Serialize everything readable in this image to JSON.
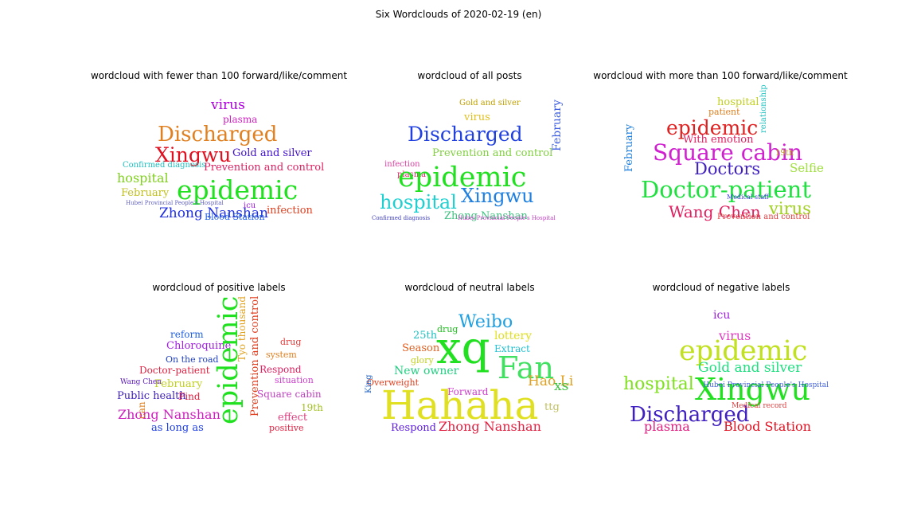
{
  "figure": {
    "title": "Six Wordclouds of 2020-02-19 (en)"
  },
  "panels": [
    {
      "title": "wordcloud with fewer than 100 forward/like/comment",
      "words": [
        {
          "text": "virus",
          "color": "#b000e0"
        },
        {
          "text": "plasma",
          "color": "#d020c0"
        },
        {
          "text": "Discharged",
          "color": "#e08020"
        },
        {
          "text": "Xingwu",
          "color": "#e01020"
        },
        {
          "text": "Gold and silver",
          "color": "#4010d0"
        },
        {
          "text": "Prevention and control",
          "color": "#e02060"
        },
        {
          "text": "Confirmed diagnosis",
          "color": "#20c0c0"
        },
        {
          "text": "hospital",
          "color": "#80d020"
        },
        {
          "text": "epidemic",
          "color": "#20e020"
        },
        {
          "text": "February",
          "color": "#c0c020"
        },
        {
          "text": "Zhong Nanshan",
          "color": "#2030e0"
        },
        {
          "text": "infection",
          "color": "#e04020"
        },
        {
          "text": "Blood Station",
          "color": "#2060e0"
        },
        {
          "text": "icu",
          "color": "#a020e0"
        },
        {
          "text": "Hubei Provincial People's Hospital",
          "color": "#6060c0"
        }
      ]
    },
    {
      "title": "wordcloud of all posts",
      "words": [
        {
          "text": "Gold and silver",
          "color": "#c0a000"
        },
        {
          "text": "virus",
          "color": "#e0c020"
        },
        {
          "text": "Discharged",
          "color": "#2040e0"
        },
        {
          "text": "Prevention and control",
          "color": "#80d040"
        },
        {
          "text": "infection",
          "color": "#e040a0"
        },
        {
          "text": "plasma",
          "color": "#e02060"
        },
        {
          "text": "epidemic",
          "color": "#20e020"
        },
        {
          "text": "February",
          "color": "#4060e0"
        },
        {
          "text": "hospital",
          "color": "#20d0d0"
        },
        {
          "text": "Xingwu",
          "color": "#2080e0"
        },
        {
          "text": "Zhong Nanshan",
          "color": "#40c080"
        },
        {
          "text": "Confirmed diagnosis",
          "color": "#4040c0"
        },
        {
          "text": "Hubei Provincial People's Hospital",
          "color": "#c040c0"
        }
      ]
    },
    {
      "title": "wordcloud with more than 100 forward/like/comment",
      "words": [
        {
          "text": "hospital",
          "color": "#c0d020"
        },
        {
          "text": "patient",
          "color": "#e08020"
        },
        {
          "text": "epidemic",
          "color": "#e02020"
        },
        {
          "text": "With emotion",
          "color": "#e02060"
        },
        {
          "text": "Square cabin",
          "color": "#d020d0"
        },
        {
          "text": "Doctors",
          "color": "#4020c0"
        },
        {
          "text": "Doctor-patient",
          "color": "#20e040"
        },
        {
          "text": "Wang Chen",
          "color": "#e02060"
        },
        {
          "text": "virus",
          "color": "#a0d020"
        },
        {
          "text": "Prevention and control",
          "color": "#e04040"
        },
        {
          "text": "February",
          "color": "#2080e0"
        },
        {
          "text": "Selfie",
          "color": "#a0e040"
        },
        {
          "text": "relationship",
          "color": "#20c0c0"
        },
        {
          "text": "19th",
          "color": "#c0a020"
        },
        {
          "text": "Medical staff",
          "color": "#4040e0"
        }
      ]
    },
    {
      "title": "wordcloud of positive labels",
      "words": [
        {
          "text": "reform",
          "color": "#2060e0"
        },
        {
          "text": "Chloroquine",
          "color": "#a020e0"
        },
        {
          "text": "On the road",
          "color": "#2040c0"
        },
        {
          "text": "Doctor-patient",
          "color": "#e02040"
        },
        {
          "text": "February",
          "color": "#c0d020"
        },
        {
          "text": "Public health",
          "color": "#4020c0"
        },
        {
          "text": "Find",
          "color": "#e02040"
        },
        {
          "text": "Zhong Nanshan",
          "color": "#d020c0"
        },
        {
          "text": "as long as",
          "color": "#2040e0"
        },
        {
          "text": "epidemic",
          "color": "#20e020"
        },
        {
          "text": "Prevention and control",
          "color": "#e04020"
        },
        {
          "text": "Tyo thousand",
          "color": "#e0a020"
        },
        {
          "text": "drug",
          "color": "#e04040"
        },
        {
          "text": "system",
          "color": "#e08020"
        },
        {
          "text": "Respond",
          "color": "#e02060"
        },
        {
          "text": "situation",
          "color": "#d040d0"
        },
        {
          "text": "Square cabin",
          "color": "#c040c0"
        },
        {
          "text": "19th",
          "color": "#a0c020"
        },
        {
          "text": "effect",
          "color": "#e04080"
        },
        {
          "text": "positive",
          "color": "#e02040"
        },
        {
          "text": "can",
          "color": "#e08020"
        },
        {
          "text": "Wang Chen",
          "color": "#6020c0"
        }
      ]
    },
    {
      "title": "wordcloud of neutral labels",
      "words": [
        {
          "text": "Weibo",
          "color": "#20a0e0"
        },
        {
          "text": "25th",
          "color": "#20c0c0"
        },
        {
          "text": "drug",
          "color": "#20c020"
        },
        {
          "text": "xq",
          "color": "#20e020"
        },
        {
          "text": "lottery",
          "color": "#e0e020"
        },
        {
          "text": "Season",
          "color": "#e06020"
        },
        {
          "text": "Extract",
          "color": "#20c0d0"
        },
        {
          "text": "glory",
          "color": "#c0d020"
        },
        {
          "text": "Fan",
          "color": "#40e060"
        },
        {
          "text": "New owner",
          "color": "#20d080"
        },
        {
          "text": "Overweight",
          "color": "#e04020"
        },
        {
          "text": "Hao Li",
          "color": "#e0a020"
        },
        {
          "text": "xs",
          "color": "#40c040"
        },
        {
          "text": "Forward",
          "color": "#d040d0"
        },
        {
          "text": "Hahaha",
          "color": "#e0e020"
        },
        {
          "text": "ttg",
          "color": "#c0c060"
        },
        {
          "text": "King",
          "color": "#2060c0"
        },
        {
          "text": "Respond",
          "color": "#6020e0"
        },
        {
          "text": "Zhong Nanshan",
          "color": "#e02040"
        }
      ]
    },
    {
      "title": "wordcloud of negative labels",
      "words": [
        {
          "text": "icu",
          "color": "#a020e0"
        },
        {
          "text": "virus",
          "color": "#e040c0"
        },
        {
          "text": "epidemic",
          "color": "#c0e020"
        },
        {
          "text": "Gold and silver",
          "color": "#20e080"
        },
        {
          "text": "hospital",
          "color": "#80e020"
        },
        {
          "text": "Xingwu",
          "color": "#20e020"
        },
        {
          "text": "Discharged",
          "color": "#4020c0"
        },
        {
          "text": "plasma",
          "color": "#e02080"
        },
        {
          "text": "Blood Station",
          "color": "#e01020"
        },
        {
          "text": "Hubei Provincial People's Hospital",
          "color": "#4060e0"
        },
        {
          "text": "Medical record",
          "color": "#e04040"
        }
      ]
    }
  ]
}
